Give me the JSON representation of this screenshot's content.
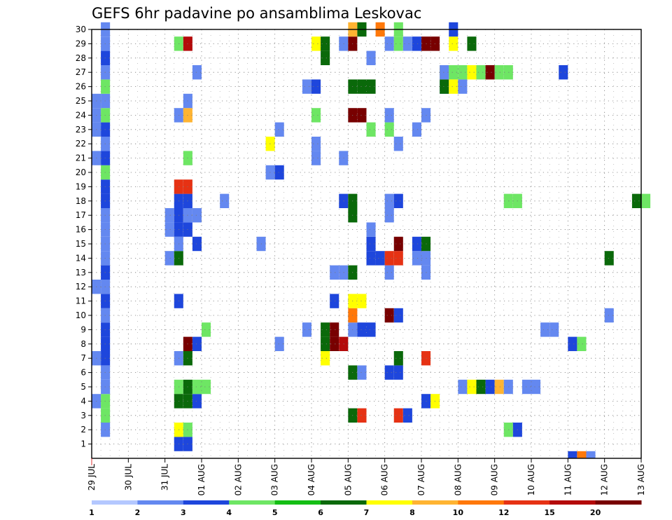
{
  "chart_data": {
    "type": "heatmap",
    "title": "GEFS 6hr padavine po ansamblima Leskovac",
    "xlabel": "",
    "ylabel": "",
    "x_ticks": [
      "29 JUL",
      "30 JUL",
      "31 JUL",
      "01 AUG",
      "02 AUG",
      "03 AUG",
      "04 AUG",
      "05 AUG",
      "06 AUG",
      "07 AUG",
      "08 AUG",
      "09 AUG",
      "10 AUG",
      "11 AUG",
      "12 AUG",
      "13 AUG"
    ],
    "x_range": [
      0,
      60
    ],
    "x_unit": "6-hour steps from 29 JUL",
    "y_ticks": [
      "1",
      "2",
      "3",
      "4",
      "5",
      "6",
      "7",
      "8",
      "9",
      "10",
      "11",
      "12",
      "13",
      "14",
      "15",
      "16",
      "17",
      "18",
      "19",
      "20",
      "21",
      "22",
      "23",
      "24",
      "25",
      "26",
      "27",
      "28",
      "29",
      "30"
    ],
    "y_range": [
      0,
      30
    ],
    "y_unit": "ensemble member",
    "grid": true,
    "colorbar": {
      "ticks": [
        "1",
        "2",
        "3",
        "4",
        "5",
        "6",
        "7",
        "8",
        "10",
        "12",
        "15",
        "20"
      ],
      "colors": [
        "#b4c8ff",
        "#6488f0",
        "#1e46dc",
        "#6ee664",
        "#14be14",
        "#0a690a",
        "#ffff00",
        "#ffb432",
        "#ff780a",
        "#e63214",
        "#b40a0a",
        "#780000"
      ]
    },
    "cells": [
      [
        1,
        1,
        1
      ],
      [
        1,
        2,
        3
      ],
      [
        1,
        3,
        3
      ],
      [
        1,
        4,
        1
      ],
      [
        1,
        5,
        1
      ],
      [
        1,
        6,
        2
      ],
      [
        1,
        7,
        2
      ],
      [
        1,
        8,
        2
      ],
      [
        1,
        9,
        1
      ],
      [
        1,
        10,
        2
      ],
      [
        1,
        11,
        1
      ],
      [
        1,
        12,
        2
      ],
      [
        1,
        13,
        1
      ],
      [
        1,
        14,
        1
      ],
      [
        1,
        15,
        1
      ],
      [
        1,
        16,
        1
      ],
      [
        1,
        17,
        2
      ],
      [
        1,
        18,
        2
      ],
      [
        1,
        19,
        3
      ],
      [
        1,
        20,
        2
      ],
      [
        1,
        21,
        1
      ],
      [
        1,
        22,
        2
      ],
      [
        1,
        23,
        3
      ],
      [
        1,
        24,
        1
      ],
      [
        1,
        25,
        3
      ],
      [
        1,
        26,
        1
      ],
      [
        1,
        27,
        2
      ],
      [
        1,
        28,
        1
      ],
      [
        1,
        29,
        1
      ],
      [
        0,
        3,
        1
      ],
      [
        0,
        6,
        1
      ],
      [
        0,
        11,
        1
      ],
      [
        0,
        20,
        1
      ],
      [
        0,
        22,
        1
      ],
      [
        0,
        23,
        1
      ],
      [
        0,
        24,
        1
      ],
      [
        8,
        13,
        1
      ],
      [
        8,
        15,
        1
      ],
      [
        8,
        16,
        1
      ],
      [
        9,
        0,
        2
      ],
      [
        9,
        1,
        6
      ],
      [
        9,
        4,
        3
      ],
      [
        9,
        3,
        5
      ],
      [
        9,
        6,
        1
      ],
      [
        9,
        10,
        2
      ],
      [
        9,
        13,
        5
      ],
      [
        9,
        14,
        1
      ],
      [
        9,
        15,
        2
      ],
      [
        9,
        16,
        2
      ],
      [
        9,
        17,
        2
      ],
      [
        9,
        18,
        9
      ],
      [
        9,
        23,
        1
      ],
      [
        9,
        28,
        3
      ],
      [
        10,
        0,
        2
      ],
      [
        10,
        1,
        3
      ],
      [
        10,
        3,
        5
      ],
      [
        10,
        4,
        5
      ],
      [
        10,
        6,
        5
      ],
      [
        10,
        7,
        11
      ],
      [
        10,
        15,
        2
      ],
      [
        10,
        16,
        1
      ],
      [
        10,
        17,
        2
      ],
      [
        10,
        18,
        9
      ],
      [
        10,
        20,
        3
      ],
      [
        10,
        23,
        7
      ],
      [
        10,
        24,
        1
      ],
      [
        10,
        28,
        10
      ],
      [
        11,
        3,
        2
      ],
      [
        11,
        4,
        3
      ],
      [
        11,
        7,
        2
      ],
      [
        11,
        14,
        2
      ],
      [
        11,
        16,
        1
      ],
      [
        11,
        26,
        1
      ],
      [
        12,
        4,
        3
      ],
      [
        12,
        8,
        3
      ],
      [
        14,
        17,
        1
      ],
      [
        18,
        14,
        1
      ],
      [
        19,
        19,
        1
      ],
      [
        19,
        21,
        6
      ],
      [
        20,
        7,
        1
      ],
      [
        20,
        19,
        2
      ],
      [
        20,
        22,
        1
      ],
      [
        23,
        8,
        1
      ],
      [
        23,
        25,
        1
      ],
      [
        24,
        20,
        1
      ],
      [
        24,
        21,
        1
      ],
      [
        24,
        23,
        3
      ],
      [
        24,
        25,
        2
      ],
      [
        24,
        28,
        6
      ],
      [
        25,
        7,
        5
      ],
      [
        25,
        8,
        5
      ],
      [
        25,
        6,
        6
      ],
      [
        25,
        27,
        5
      ],
      [
        25,
        28,
        5
      ],
      [
        26,
        7,
        11
      ],
      [
        26,
        8,
        11
      ],
      [
        26,
        10,
        2
      ],
      [
        26,
        12,
        1
      ],
      [
        27,
        7,
        10
      ],
      [
        27,
        12,
        1
      ],
      [
        27,
        17,
        2
      ],
      [
        27,
        20,
        1
      ],
      [
        27,
        28,
        1
      ],
      [
        28,
        2,
        5
      ],
      [
        28,
        5,
        5
      ],
      [
        28,
        8,
        1
      ],
      [
        28,
        9,
        8
      ],
      [
        28,
        10,
        6
      ],
      [
        28,
        12,
        5
      ],
      [
        28,
        16,
        5
      ],
      [
        28,
        17,
        5
      ],
      [
        28,
        23,
        12
      ],
      [
        28,
        25,
        5
      ],
      [
        28,
        28,
        12
      ],
      [
        28,
        29,
        7
      ],
      [
        29,
        2,
        9
      ],
      [
        29,
        5,
        1
      ],
      [
        29,
        8,
        2
      ],
      [
        29,
        10,
        6
      ],
      [
        29,
        23,
        12
      ],
      [
        29,
        25,
        5
      ],
      [
        29,
        29,
        5
      ],
      [
        30,
        8,
        2
      ],
      [
        30,
        13,
        2
      ],
      [
        30,
        14,
        2
      ],
      [
        30,
        15,
        1
      ],
      [
        30,
        22,
        3
      ],
      [
        30,
        25,
        5
      ],
      [
        30,
        27,
        1
      ],
      [
        31,
        13,
        2
      ],
      [
        31,
        29,
        8
      ],
      [
        32,
        5,
        2
      ],
      [
        32,
        9,
        12
      ],
      [
        32,
        12,
        1
      ],
      [
        32,
        13,
        9
      ],
      [
        32,
        16,
        1
      ],
      [
        32,
        17,
        1
      ],
      [
        32,
        22,
        3
      ],
      [
        32,
        23,
        1
      ],
      [
        32,
        28,
        1
      ],
      [
        33,
        2,
        9
      ],
      [
        33,
        5,
        2
      ],
      [
        33,
        6,
        5
      ],
      [
        33,
        9,
        2
      ],
      [
        33,
        13,
        9
      ],
      [
        33,
        14,
        12
      ],
      [
        33,
        17,
        2
      ],
      [
        33,
        21,
        1
      ],
      [
        33,
        28,
        3
      ],
      [
        33,
        29,
        3
      ],
      [
        34,
        2,
        2
      ],
      [
        34,
        28,
        1
      ],
      [
        35,
        13,
        1
      ],
      [
        35,
        14,
        2
      ],
      [
        35,
        22,
        1
      ],
      [
        35,
        28,
        2
      ],
      [
        36,
        3,
        2
      ],
      [
        36,
        6,
        9
      ],
      [
        36,
        12,
        1
      ],
      [
        36,
        13,
        1
      ],
      [
        36,
        14,
        5
      ],
      [
        36,
        23,
        1
      ],
      [
        36,
        28,
        12
      ],
      [
        37,
        3,
        6
      ],
      [
        37,
        28,
        12
      ],
      [
        38,
        26,
        2
      ],
      [
        38,
        25,
        1
      ],
      [
        38,
        25,
        5
      ],
      [
        38,
        26,
        6
      ],
      [
        38,
        26,
        1
      ],
      [
        39,
        26,
        3
      ],
      [
        39,
        25,
        6
      ],
      [
        39,
        28,
        6
      ],
      [
        39,
        29,
        2
      ],
      [
        40,
        4,
        1
      ],
      [
        40,
        26,
        3
      ],
      [
        40,
        25,
        1
      ],
      [
        41,
        4,
        6
      ],
      [
        41,
        26,
        6
      ],
      [
        41,
        28,
        5
      ],
      [
        42,
        4,
        5
      ],
      [
        42,
        26,
        3
      ],
      [
        43,
        4,
        2
      ],
      [
        43,
        26,
        12
      ],
      [
        44,
        4,
        7
      ],
      [
        44,
        26,
        3
      ],
      [
        45,
        1,
        3
      ],
      [
        45,
        4,
        1
      ],
      [
        45,
        17,
        3
      ],
      [
        45,
        26,
        3
      ],
      [
        46,
        1,
        2
      ],
      [
        46,
        17,
        3
      ],
      [
        47,
        4,
        1
      ],
      [
        48,
        4,
        1
      ],
      [
        49,
        8,
        1
      ],
      [
        50,
        8,
        1
      ],
      [
        52,
        7,
        2
      ],
      [
        53,
        7,
        3
      ],
      [
        51,
        26,
        2
      ],
      [
        52,
        -1,
        2
      ],
      [
        53,
        -1,
        8
      ],
      [
        54,
        -1,
        1
      ],
      [
        56,
        9,
        1
      ],
      [
        56,
        13,
        5
      ],
      [
        59,
        17,
        5
      ],
      [
        60,
        17,
        3
      ]
    ]
  }
}
